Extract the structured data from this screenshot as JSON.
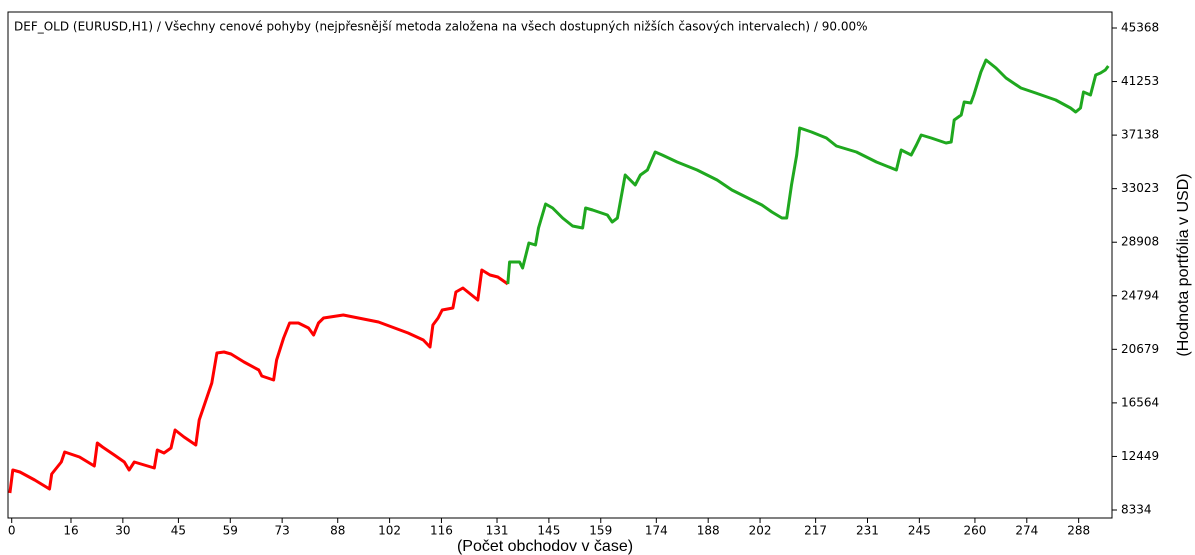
{
  "chart_data": {
    "type": "line",
    "title": "DEF_OLD (EURUSD,H1) / Všechny cenové pohyby (nejpřesnější metoda založena na všech dostupných nižších časových intervalech) / 90.00%",
    "x_label": "(Počet obchodov v čase)",
    "y_label": "(Hodnota portfólia v USD)",
    "xlim": [
      -1,
      297
    ],
    "ylim": [
      7719,
      46597
    ],
    "xticks": [
      0,
      16,
      30,
      45,
      59,
      73,
      88,
      102,
      116,
      131,
      145,
      159,
      174,
      188,
      202,
      217,
      231,
      245,
      260,
      274,
      288
    ],
    "yticks": [
      8334,
      12449,
      16564,
      20679,
      24794,
      28908,
      33023,
      37138,
      41253,
      45368
    ],
    "series": [
      {
        "color": "#ff0000",
        "x": [
          -0.5,
          0.3,
          2.2,
          6.2,
          10.2,
          10.8,
          13.4,
          14.3,
          18.3,
          22.3,
          23.1,
          24.5,
          27.7,
          30.4,
          31.7,
          33.1,
          38.5,
          39.3,
          41.1,
          43.0,
          44.1,
          46.5,
          49.7,
          50.6,
          54.0,
          55.4,
          57.3,
          59.2,
          62.7,
          66.7,
          67.5,
          70.7,
          71.5,
          73.4,
          75.0,
          77.4,
          80.1,
          81.5,
          82.8,
          84.2,
          89.5,
          99.0,
          107.0,
          111.1,
          112.9,
          113.7,
          115.1,
          116.2,
          119.1,
          119.9,
          121.8,
          125.8,
          126.9,
          129.1,
          131.2,
          133.9
        ],
        "values": [
          9642,
          11409,
          11255,
          10641,
          9949,
          11102,
          12024,
          12792,
          12408,
          11716,
          13483,
          13176,
          12561,
          12024,
          11409,
          12024,
          11563,
          12945,
          12715,
          13099,
          14482,
          13944,
          13330,
          15250,
          18093,
          20398,
          20475,
          20321,
          19707,
          19092,
          18631,
          18324,
          19860,
          21550,
          22703,
          22703,
          22319,
          21781,
          22703,
          23087,
          23318,
          22780,
          21935,
          21397,
          20859,
          22549,
          23087,
          23702,
          23855,
          25085,
          25392,
          24470,
          26775,
          26391,
          26237,
          25699
        ]
      },
      {
        "color": "#1fa81f",
        "x": [
          133.9,
          134.4,
          137.1,
          137.9,
          139.6,
          141.4,
          142.2,
          144.1,
          146.0,
          148.7,
          151.4,
          154.1,
          154.9,
          156.8,
          160.8,
          162.1,
          163.5,
          165.6,
          168.3,
          169.7,
          171.6,
          173.7,
          175.6,
          179.6,
          185.0,
          190.4,
          194.4,
          197.1,
          202.5,
          205.2,
          207.9,
          209.2,
          210.5,
          211.9,
          212.7,
          215.9,
          219.9,
          222.6,
          228.0,
          233.4,
          238.8,
          240.1,
          242.8,
          244.2,
          245.5,
          248.2,
          252.2,
          253.6,
          254.4,
          256.3,
          257.1,
          258.9,
          259.7,
          261.6,
          263.0,
          265.7,
          268.4,
          272.4,
          276.4,
          281.8,
          285.8,
          287.2,
          288.5,
          289.3,
          291.2,
          292.6,
          293.9,
          295.2,
          296.0
        ],
        "values": [
          25699,
          27390,
          27390,
          26929,
          28849,
          28696,
          30002,
          31846,
          31538,
          30770,
          30155,
          30002,
          31538,
          31385,
          31001,
          30463,
          30770,
          34074,
          33305,
          34074,
          34458,
          35841,
          35610,
          35073,
          34458,
          33690,
          32921,
          32537,
          31769,
          31231,
          30770,
          30770,
          33305,
          35610,
          37685,
          37377,
          36916,
          36302,
          35841,
          35073,
          34458,
          35994,
          35610,
          36379,
          37147,
          36916,
          36532,
          36609,
          38299,
          38684,
          39682,
          39606,
          40220,
          41987,
          42909,
          42295,
          41526,
          40758,
          40374,
          39836,
          39221,
          38914,
          39221,
          40451,
          40220,
          41757,
          41910,
          42141,
          42448
        ]
      }
    ]
  }
}
